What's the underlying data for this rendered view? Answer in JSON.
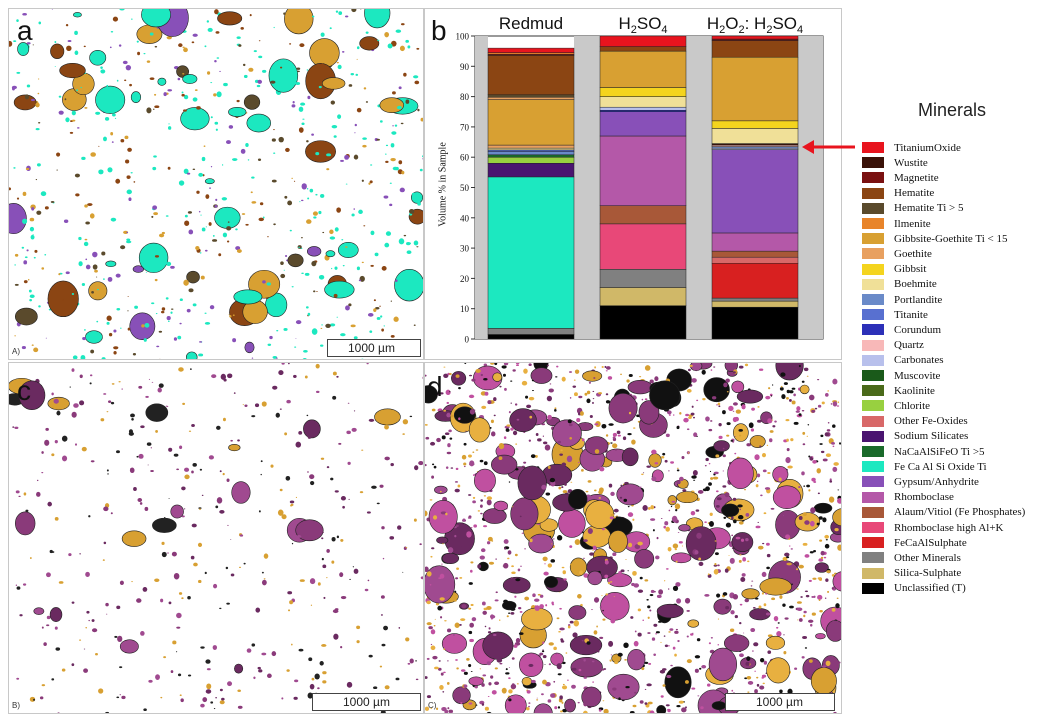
{
  "panels": {
    "a": {
      "letter": "a",
      "corner": "A)",
      "scale": "1000 µm"
    },
    "b": {
      "letter": "b"
    },
    "c": {
      "letter": "c",
      "corner": "B)",
      "scale": "1000 µm"
    },
    "d": {
      "letter": "d",
      "corner": "C)",
      "scale": "1000 µm"
    }
  },
  "legend": {
    "title": "Minerals",
    "items": [
      {
        "label": "TitaniumOxide",
        "color": "#e8141e"
      },
      {
        "label": "Wustite",
        "color": "#3a1208"
      },
      {
        "label": "Magnetite",
        "color": "#7a1010"
      },
      {
        "label": "Hematite",
        "color": "#8b4513"
      },
      {
        "label": "Hematite Ti > 5",
        "color": "#5a4a2c"
      },
      {
        "label": "Ilmenite",
        "color": "#e8842a"
      },
      {
        "label": "Gibbsite-Goethite Ti < 15",
        "color": "#d8a032"
      },
      {
        "label": "Goethite",
        "color": "#e8a060"
      },
      {
        "label": "Gibbsit",
        "color": "#f4d41e"
      },
      {
        "label": "Boehmite",
        "color": "#f0e098"
      },
      {
        "label": "Portlandite",
        "color": "#6a8ac8"
      },
      {
        "label": "Titanite",
        "color": "#5870d0"
      },
      {
        "label": "Corundum",
        "color": "#2c30b8"
      },
      {
        "label": "Quartz",
        "color": "#f8b8b8"
      },
      {
        "label": "Carbonates",
        "color": "#b8c0ec"
      },
      {
        "label": "Muscovite",
        "color": "#1a5a1a"
      },
      {
        "label": "Kaolinite",
        "color": "#4a6a1a"
      },
      {
        "label": "Chlorite",
        "color": "#98d040"
      },
      {
        "label": "Other Fe-Oxides",
        "color": "#d86868"
      },
      {
        "label": "Sodium Silicates",
        "color": "#4a1470"
      },
      {
        "label": "NaCaAlSiFeO Ti >5",
        "color": "#1a6a2a"
      },
      {
        "label": "Fe Ca Al Si Oxide Ti",
        "color": "#1ce8c0"
      },
      {
        "label": "Gypsum/Anhydrite",
        "color": "#8850b8"
      },
      {
        "label": "Rhomboclase",
        "color": "#b458a8"
      },
      {
        "label": "Alaum/Vitiol (Fe Phosphates)",
        "color": "#a85838"
      },
      {
        "label": "Rhomboclase high Al+K",
        "color": "#e84878"
      },
      {
        "label": "FeCaAlSulphate",
        "color": "#d82020"
      },
      {
        "label": "Other Minerals",
        "color": "#808080"
      },
      {
        "label": "Silica-Sulphate",
        "color": "#d0b868"
      },
      {
        "label": "Unclassified (T)",
        "color": "#000000"
      }
    ]
  },
  "chart_data": {
    "type": "bar",
    "stacked": true,
    "ylabel": "Volume % in Sample",
    "ylim": [
      0,
      100
    ],
    "yticks": [
      "0",
      "10",
      "20",
      "30",
      "40",
      "50",
      "60",
      "70",
      "80",
      "90",
      "100"
    ],
    "categories": [
      {
        "base": "Redmud",
        "sub": ""
      },
      {
        "base": "H",
        "sub": "2",
        "rest": "SO",
        "sub2": "4"
      },
      {
        "base": "H",
        "sub": "2",
        "rest": "O",
        "sub2": "2",
        "tail": ": H",
        "sub3": "2",
        "tail2": "SO",
        "sub4": "4"
      }
    ],
    "category_labels": [
      "Redmud",
      "H2SO4",
      "H2O2: H2SO4"
    ],
    "stacks": [
      [
        {
          "mineral": "Unclassified (T)",
          "value": 1.5
        },
        {
          "mineral": "Other Minerals",
          "value": 2.0
        },
        {
          "mineral": "Fe Ca Al Si Oxide Ti",
          "value": 50.0
        },
        {
          "mineral": "Sodium Silicates",
          "value": 4.5
        },
        {
          "mineral": "Chlorite",
          "value": 2.0
        },
        {
          "mineral": "NaCaAlSiFeO Ti >5",
          "value": 0.8
        },
        {
          "mineral": "Portlandite",
          "value": 1.0
        },
        {
          "mineral": "Titanite",
          "value": 0.6
        },
        {
          "mineral": "Boehmite",
          "value": 0.6
        },
        {
          "mineral": "Goethite",
          "value": 1.0
        },
        {
          "mineral": "Gibbsite-Goethite Ti < 15",
          "value": 15.0
        },
        {
          "mineral": "Goethite",
          "value": 0.8
        },
        {
          "mineral": "Hematite Ti > 5",
          "value": 0.8
        },
        {
          "mineral": "Hematite",
          "value": 13.0
        },
        {
          "mineral": "Magnetite",
          "value": 0.4
        },
        {
          "mineral": "Ilmenite",
          "value": 0.5
        },
        {
          "mineral": "TitaniumOxide",
          "value": 1.5
        }
      ],
      [
        {
          "mineral": "Unclassified (T)",
          "value": 11.0
        },
        {
          "mineral": "Silica-Sulphate",
          "value": 6.0
        },
        {
          "mineral": "Other Minerals",
          "value": 6.0
        },
        {
          "mineral": "Rhomboclase high Al+K",
          "value": 15.0
        },
        {
          "mineral": "Alaum/Vitiol (Fe Phosphates)",
          "value": 6.0
        },
        {
          "mineral": "Rhomboclase",
          "value": 23.0
        },
        {
          "mineral": "Gypsum/Anhydrite",
          "value": 8.0
        },
        {
          "mineral": "Corundum",
          "value": 0.5
        },
        {
          "mineral": "Carbonates",
          "value": 1.0
        },
        {
          "mineral": "Boehmite",
          "value": 3.5
        },
        {
          "mineral": "Gibbsit",
          "value": 3.0
        },
        {
          "mineral": "Gibbsite-Goethite Ti < 15",
          "value": 12.0
        },
        {
          "mineral": "Hematite",
          "value": 1.5
        },
        {
          "mineral": "TitaniumOxide",
          "value": 3.5
        }
      ],
      [
        {
          "mineral": "Unclassified (T)",
          "value": 10.5
        },
        {
          "mineral": "Silica-Sulphate",
          "value": 2.0
        },
        {
          "mineral": "Other Minerals",
          "value": 1.0
        },
        {
          "mineral": "FeCaAlSulphate",
          "value": 11.5
        },
        {
          "mineral": "Other Fe-Oxides",
          "value": 2.0
        },
        {
          "mineral": "Alaum/Vitiol (Fe Phosphates)",
          "value": 2.0
        },
        {
          "mineral": "Rhomboclase",
          "value": 6.0
        },
        {
          "mineral": "Gypsum/Anhydrite",
          "value": 27.5
        },
        {
          "mineral": "Carbonates",
          "value": 0.5
        },
        {
          "mineral": "Portlandite",
          "value": 0.5
        },
        {
          "mineral": "Quartz",
          "value": 0.5
        },
        {
          "mineral": "Wustite",
          "value": 0.5
        },
        {
          "mineral": "Boehmite",
          "value": 5.0
        },
        {
          "mineral": "Gibbsit",
          "value": 2.5
        },
        {
          "mineral": "Gibbsite-Goethite Ti < 15",
          "value": 21.0
        },
        {
          "mineral": "Hematite",
          "value": 5.5
        },
        {
          "mineral": "Magnetite",
          "value": 0.5
        },
        {
          "mineral": "TitaniumOxide",
          "value": 1.0
        }
      ]
    ]
  }
}
